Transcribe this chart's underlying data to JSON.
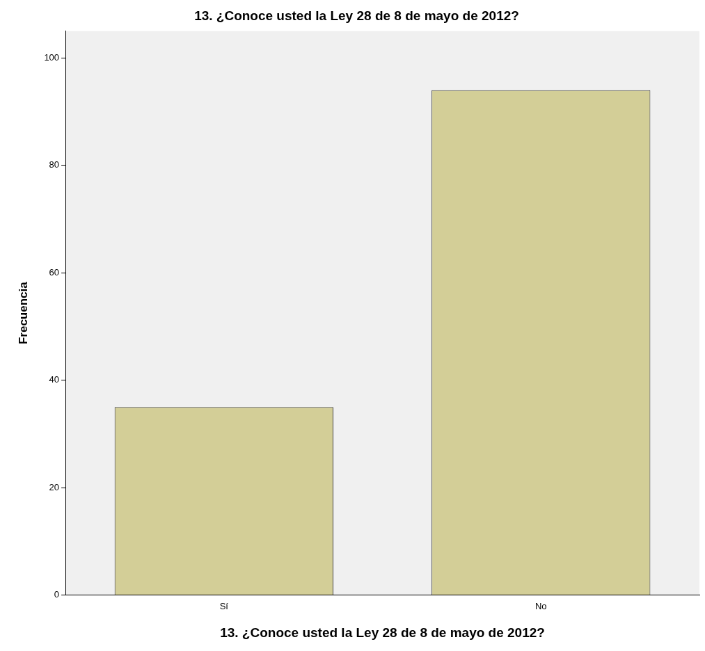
{
  "chart_data": {
    "type": "bar",
    "title": "13. ¿Conoce usted la Ley 28 de 8 de mayo de 2012?",
    "xlabel": "13. ¿Conoce usted la Ley 28 de 8 de mayo de 2012?",
    "ylabel": "Frecuencia",
    "categories": [
      "Sí",
      "No"
    ],
    "values": [
      35,
      94
    ],
    "color": "#d3ce97",
    "ylim": [
      0,
      105
    ],
    "yticks": [
      0,
      20,
      40,
      60,
      80,
      100
    ],
    "grid": false,
    "legend": false
  }
}
